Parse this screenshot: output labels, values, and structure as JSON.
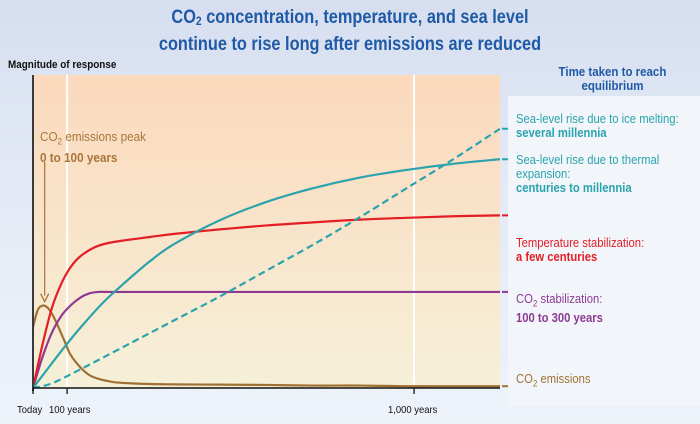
{
  "header": {
    "title_line1_prefix": "CO",
    "title_line1_sub": "2",
    "title_line1_rest": " concentration, temperature, and sea level",
    "title_line2": "continue to rise long after emissions are reduced"
  },
  "legend_panel": {
    "title_line1": "Time taken to reach",
    "title_line2": "equilibrium",
    "items": [
      {
        "label": "Sea-level rise due to ice melting:",
        "value": "several millennia",
        "color": "#2aa3ad"
      },
      {
        "label_line1": "Sea-level rise due to thermal",
        "label_line2": "expansion:",
        "value": "centuries to millennia",
        "color": "#2aa3ad"
      },
      {
        "label": "Temperature stabilization:",
        "value": "a few centuries",
        "color": "#e31e25"
      },
      {
        "label_prefix": "CO",
        "label_sub": "2",
        "label_rest": " stabilization:",
        "value": "100 to 300 years",
        "color": "#8e3a93"
      },
      {
        "label_prefix": "CO",
        "label_sub": "2",
        "label_rest": " emissions",
        "color": "#a07033"
      }
    ]
  },
  "annotation": {
    "line1_prefix": "CO",
    "line1_sub": "2",
    "line1_rest": " emissions peak",
    "line2": "0 to 100 years",
    "color": "#a9753a"
  },
  "colors": {
    "ice_melting": "#2aa3ad",
    "thermal_expansion": "#2aa3ad",
    "temperature": "#e31e25",
    "co2_concentration": "#8e3a93",
    "co2_emissions": "#a07033",
    "plot_bg_top": "#fbd9bd",
    "plot_bg_bottom": "#f6f0d8"
  },
  "chart_data": {
    "type": "line",
    "title": "CO2 concentration, temperature, and sea level continue to rise long after emissions are reduced",
    "ylabel": "Magnitude of response",
    "xlabel": "",
    "x_tick_labels": [
      {
        "label": "Today",
        "x": 0
      },
      {
        "label": "100 years",
        "x": 7.3
      },
      {
        "label": "1,000  years",
        "x": 81.6
      }
    ],
    "xlim": [
      0,
      100
    ],
    "ylim": [
      0,
      100
    ],
    "grid": "vertical lines at 100 years and 1,000 years",
    "legend_placement": "right",
    "series": [
      {
        "name": "Sea-level rise due to ice melting",
        "style": "dashed",
        "x": [
          0,
          4,
          10,
          20,
          30,
          40,
          50,
          60,
          70,
          80,
          90,
          100
        ],
        "y": [
          0,
          1.5,
          6,
          14,
          22,
          30,
          38.5,
          47,
          56,
          65.5,
          75,
          85
        ]
      },
      {
        "name": "Sea-level rise due to thermal expansion",
        "style": "solid",
        "x": [
          0,
          3,
          6,
          10,
          15,
          20,
          25,
          30,
          40,
          50,
          60,
          70,
          80,
          90,
          100
        ],
        "y": [
          0,
          6,
          12,
          19.5,
          28,
          35,
          41.5,
          47,
          55,
          61,
          65.5,
          69,
          71.5,
          73.5,
          75
        ]
      },
      {
        "name": "Temperature stabilization",
        "style": "solid",
        "x": [
          0,
          2,
          4,
          6,
          8,
          10,
          13,
          16,
          20,
          25,
          30,
          40,
          50,
          60,
          70,
          80,
          90,
          100
        ],
        "y": [
          0,
          14,
          26,
          34,
          39.5,
          43,
          46,
          47.5,
          48.5,
          49.5,
          50.5,
          52,
          53.3,
          54.3,
          55.2,
          55.8,
          56.3,
          56.6
        ]
      },
      {
        "name": "CO2 stabilization",
        "style": "solid",
        "x": [
          0,
          2,
          4,
          6,
          8,
          10,
          12,
          14,
          16,
          20,
          30,
          50,
          80,
          100
        ],
        "y": [
          0,
          10,
          18,
          23.5,
          27,
          29.5,
          31,
          31.5,
          31.5,
          31.5,
          31.5,
          31.5,
          31.5,
          31.5
        ]
      },
      {
        "name": "CO2 emissions",
        "style": "solid",
        "x": [
          0,
          1,
          2,
          3,
          4,
          5,
          6,
          7,
          8,
          10,
          12,
          14,
          17,
          20,
          25,
          30,
          40,
          50,
          60,
          70,
          80,
          90,
          100
        ],
        "y": [
          20,
          25.5,
          27,
          26.5,
          24.5,
          21.5,
          18,
          14.5,
          11,
          7,
          4.3,
          3,
          2,
          1.6,
          1.3,
          1.2,
          1.1,
          1.0,
          0.8,
          0.8,
          0.6,
          0.6,
          0.6
        ]
      }
    ],
    "annotations": [
      "CO2 emissions peak 0 to 100 years"
    ]
  }
}
